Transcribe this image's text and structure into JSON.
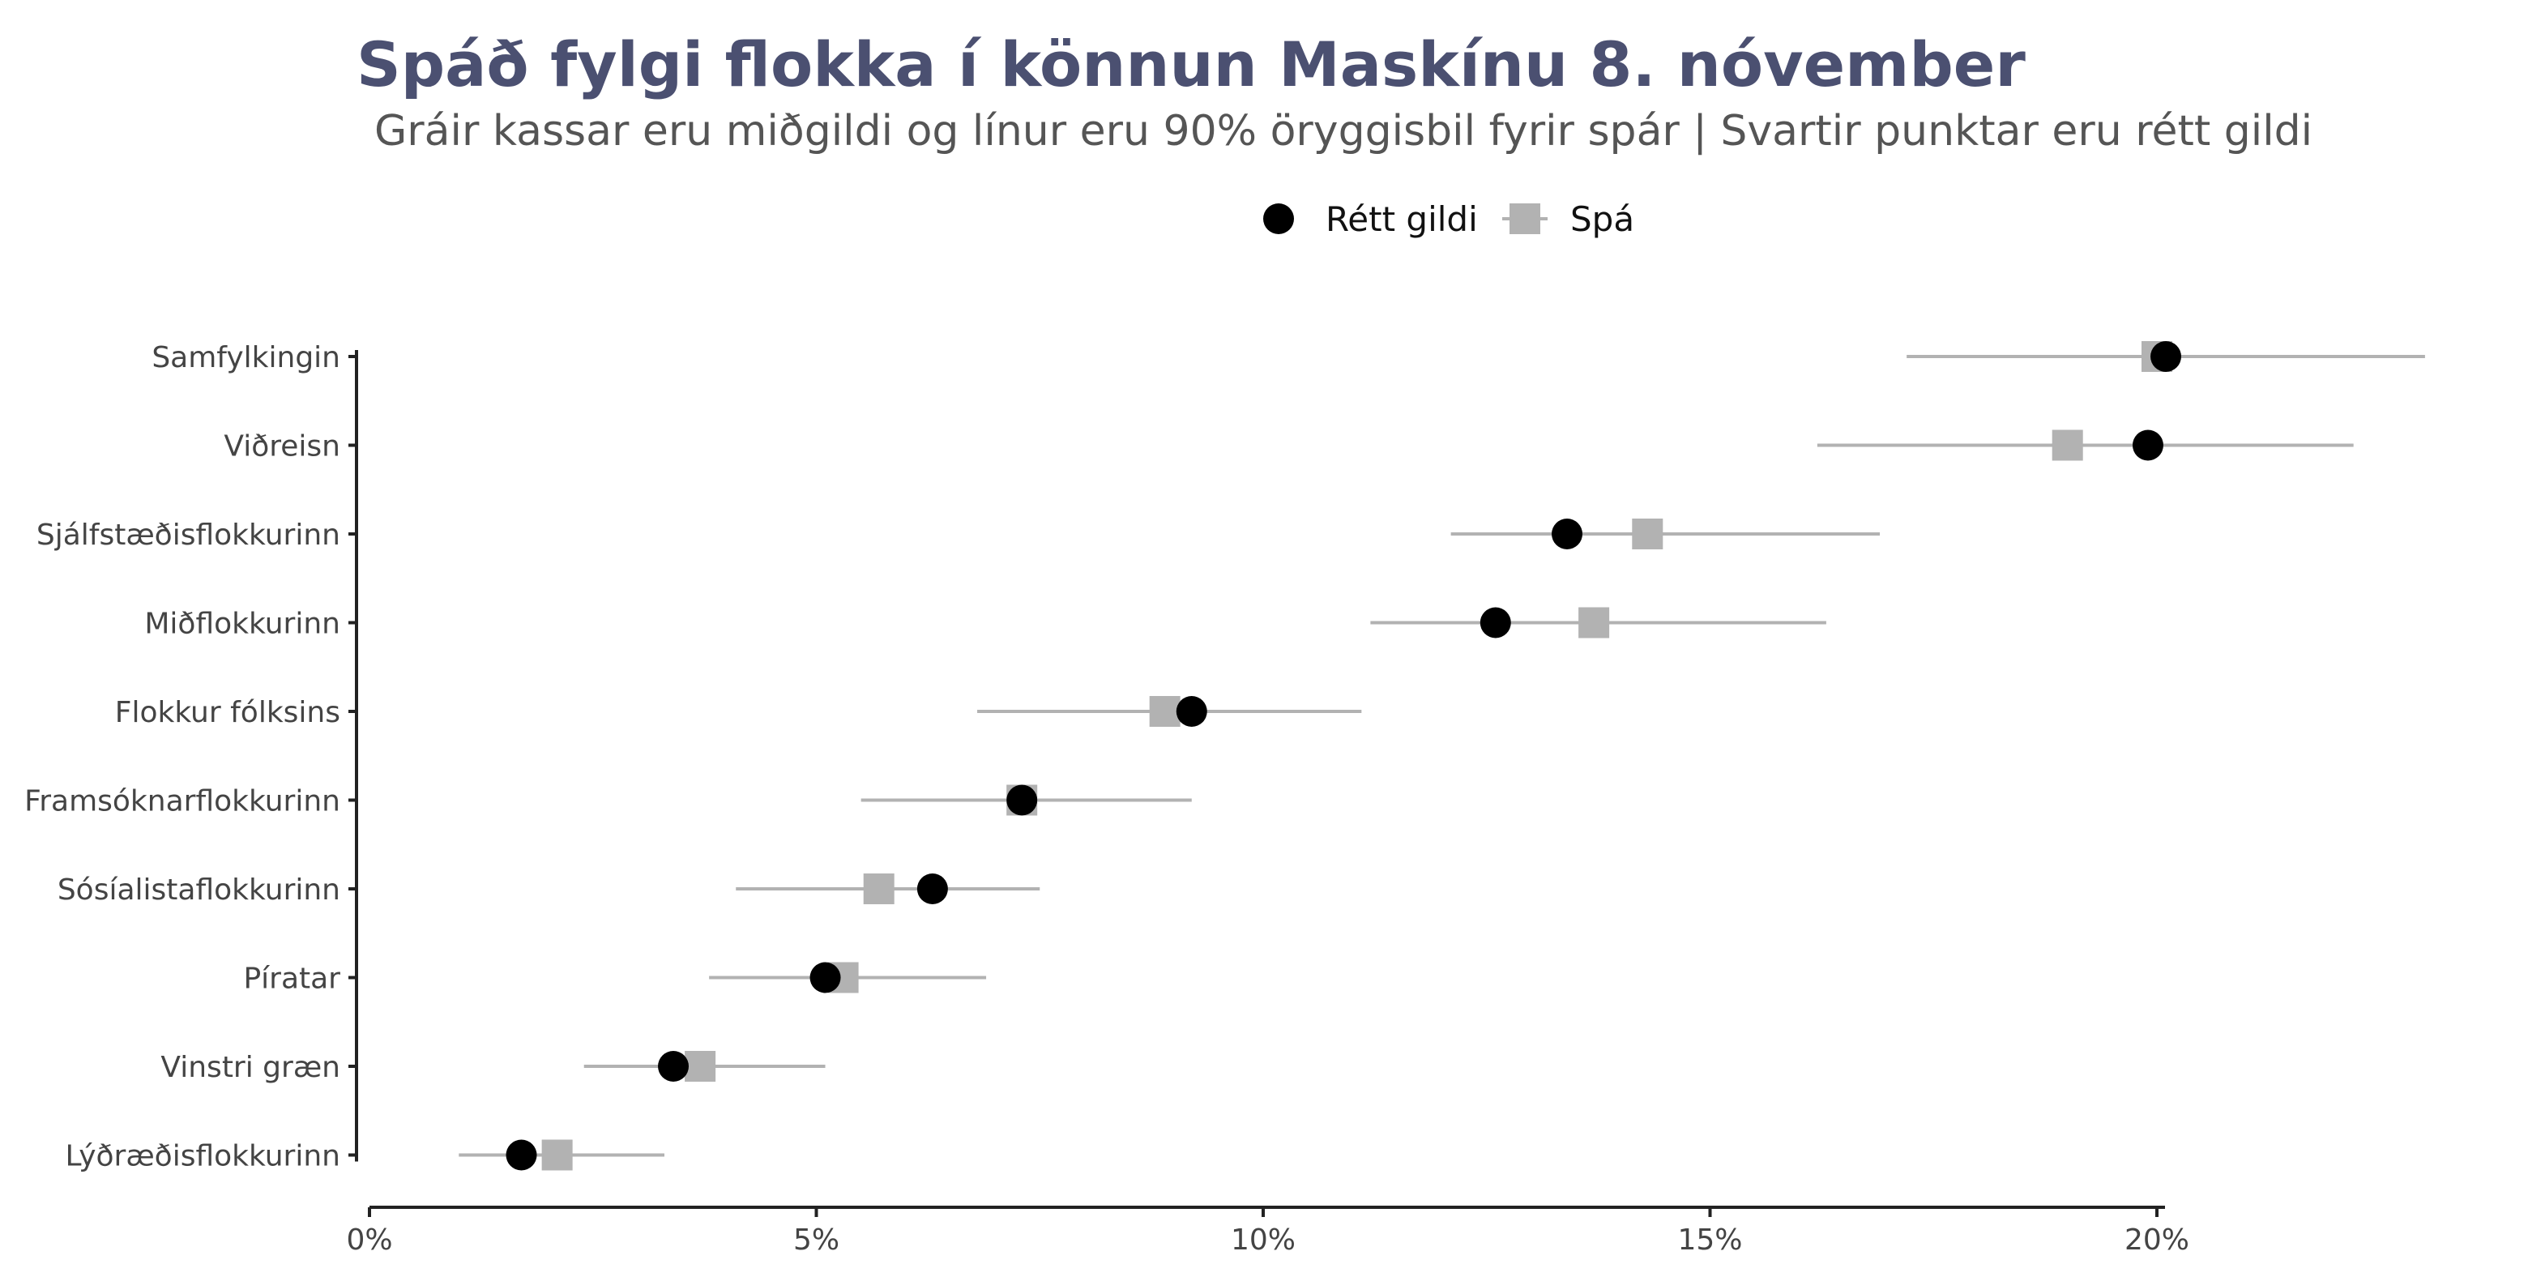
{
  "chart_data": {
    "type": "scatter",
    "title": "Spáð fylgi flokka í könnun Maskínu 8. nóvember",
    "subtitle": "Gráir kassar eru miðgildi og línur eru 90% öryggisbil fyrir spár | Svartir punktar eru rétt gildi",
    "xlabel": "",
    "ylabel": "",
    "xlim": [
      0,
      20
    ],
    "x_ticks": [
      0,
      5,
      10,
      15,
      20
    ],
    "x_tick_labels": [
      "0%",
      "5%",
      "10%",
      "15%",
      "20%"
    ],
    "grid": false,
    "legend_position": "top",
    "legend": [
      {
        "label": "Rétt gildi",
        "marker": "circle",
        "color": "#000000"
      },
      {
        "label": "Spá",
        "marker": "square",
        "color": "#b2b2b2"
      }
    ],
    "categories": [
      "Samfylkingin",
      "Viðreisn",
      "Sjálfstæðisflokkurinn",
      "Miðflokkurinn",
      "Flokkur fólksins",
      "Framsóknarflokkurinn",
      "Sósíalistaflokkurinn",
      "Píratar",
      "Vinstri græn",
      "Lýðræðisflokkurinn"
    ],
    "series": [
      {
        "name": "Rétt gildi",
        "marker": "circle",
        "color": "#000000",
        "values": [
          20.1,
          19.9,
          13.4,
          12.6,
          9.2,
          7.3,
          6.3,
          5.1,
          3.4,
          1.7
        ]
      },
      {
        "name": "Spá",
        "marker": "square",
        "color": "#b2b2b2",
        "values": [
          20.0,
          19.0,
          14.3,
          13.7,
          8.9,
          7.3,
          5.7,
          5.3,
          3.7,
          2.1
        ],
        "interval_low": [
          17.2,
          16.2,
          12.1,
          11.2,
          6.8,
          5.5,
          4.1,
          3.8,
          2.4,
          1.0
        ],
        "interval_high": [
          23.0,
          22.2,
          16.9,
          16.3,
          11.1,
          9.2,
          7.5,
          6.9,
          5.1,
          3.3
        ]
      }
    ]
  }
}
